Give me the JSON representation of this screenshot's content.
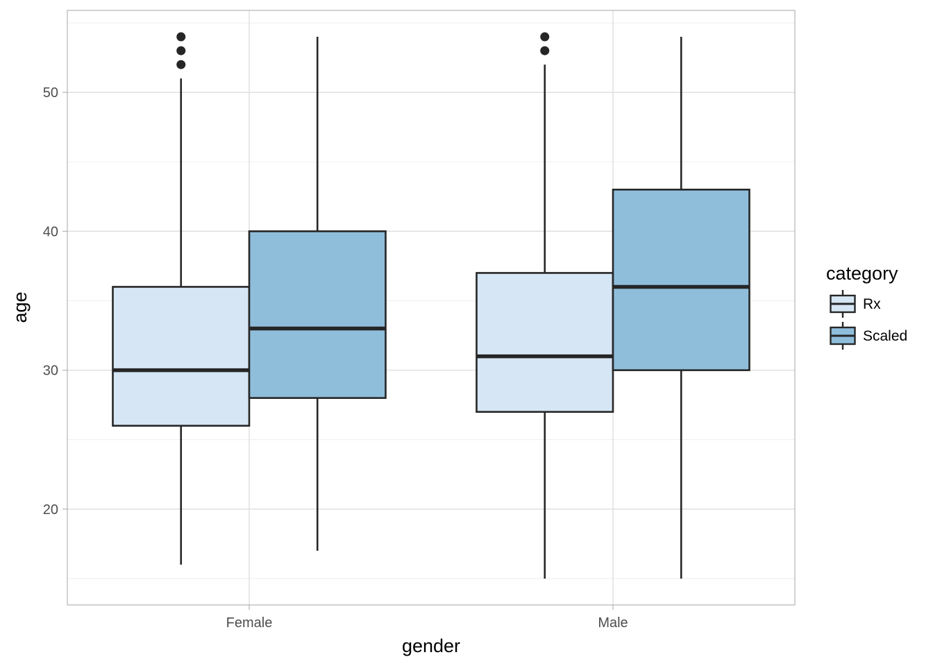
{
  "chart_data": {
    "type": "boxplot",
    "xlabel": "gender",
    "ylabel": "age",
    "categories": [
      "Female",
      "Male"
    ],
    "ylim": [
      13.1,
      55.9
    ],
    "yticks": [
      20,
      30,
      40,
      50
    ],
    "grid": true,
    "legend": {
      "title": "category",
      "placement": "right"
    },
    "series": [
      {
        "name": "Rx",
        "color": "#d6e6f4",
        "boxes": [
          {
            "category": "Female",
            "whisker_low": 16,
            "q1": 26,
            "median": 30,
            "q3": 36,
            "whisker_high": 51,
            "outliers": [
              52,
              53,
              54
            ]
          },
          {
            "category": "Male",
            "whisker_low": 15,
            "q1": 27,
            "median": 31,
            "q3": 37,
            "whisker_high": 52,
            "outliers": [
              53,
              54
            ]
          }
        ]
      },
      {
        "name": "Scaled",
        "color": "#8fbedb",
        "boxes": [
          {
            "category": "Female",
            "whisker_low": 17,
            "q1": 28,
            "median": 33,
            "q3": 40,
            "whisker_high": 54,
            "outliers": []
          },
          {
            "category": "Male",
            "whisker_low": 15,
            "q1": 30,
            "median": 36,
            "q3": 43,
            "whisker_high": 54,
            "outliers": []
          }
        ]
      }
    ],
    "colors": {
      "panel_border": "#b3b3b3",
      "grid_major": "#dedede",
      "grid_minor": "#efefef",
      "box_line": "#262626",
      "outlier": "#262626"
    }
  }
}
